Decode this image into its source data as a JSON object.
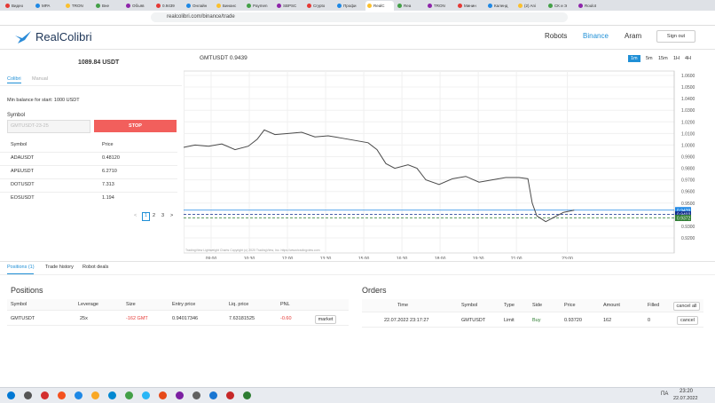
{
  "browser": {
    "tabs": [
      "Видео",
      "MPA",
      "TRON",
      "Вне",
      "Объяв",
      "0.9439",
      "Онлайн",
      "Бинанс",
      "Paymen",
      "SBPSC",
      "Crypto",
      "Профи",
      "RealC",
      "Rea",
      "TRON",
      "Минин",
      "Календ",
      "(2) Ani",
      "СК и Э",
      "Roulot"
    ],
    "url": "realcolibri.com/binance/trade"
  },
  "header": {
    "logo": "RealColibri",
    "nav": [
      "Robots",
      "Binance",
      "Aram"
    ],
    "signout": "Sign out"
  },
  "left": {
    "balance": "1089.84 USDT",
    "tabs": [
      "Colibri",
      "Manual"
    ],
    "min_balance": "Min balance for start: 1000 USDT",
    "symbol_label": "Symbol",
    "symbol_select": "GMTUSDT-23-25",
    "stop": "STOP",
    "headers": [
      "Symbol",
      "Price"
    ],
    "rows": [
      [
        "ADAUSDT",
        "0.48120"
      ],
      [
        "APEUSDT",
        "6.2710"
      ],
      [
        "DOTUSDT",
        "7.313"
      ],
      [
        "EOSUSDT",
        "1.194"
      ]
    ],
    "pages": [
      "1",
      "2",
      "3"
    ]
  },
  "chart": {
    "title": "GMTUSDT 0.9439",
    "intervals": [
      "1m",
      "5m",
      "15m",
      "1H",
      "4H"
    ],
    "attribution": "TradingView Lightweight Charts Copyright (c) 2020 TradingView, Inc. https://www.tradingview.com",
    "xlim": [
      7.92,
      27.2
    ],
    "ylim": [
      0.907,
      1.0638
    ],
    "xticks": [
      {
        "value": 9,
        "label": "09:00"
      },
      {
        "value": 10.5,
        "label": "10:30"
      },
      {
        "value": 12,
        "label": "12:00"
      },
      {
        "value": 13.5,
        "label": "13:30"
      },
      {
        "value": 15,
        "label": "15:00"
      },
      {
        "value": 16.5,
        "label": "16:30"
      },
      {
        "value": 18,
        "label": "18:00"
      },
      {
        "value": 19.5,
        "label": "19:30"
      },
      {
        "value": 21,
        "label": "21:00"
      },
      {
        "value": 23,
        "label": "23:00"
      }
    ],
    "yticks": [
      {
        "value": 1.06,
        "label": "1.0600"
      },
      {
        "value": 1.05,
        "label": "1.0500"
      },
      {
        "value": 1.04,
        "label": "1.0400"
      },
      {
        "value": 1.03,
        "label": "1.0300"
      },
      {
        "value": 1.02,
        "label": "1.0200"
      },
      {
        "value": 1.01,
        "label": "1.0100"
      },
      {
        "value": 1.0,
        "label": "1.0000"
      },
      {
        "value": 0.99,
        "label": "0.9900"
      },
      {
        "value": 0.98,
        "label": "0.9800"
      },
      {
        "value": 0.97,
        "label": "0.9700"
      },
      {
        "value": 0.96,
        "label": "0.9600"
      },
      {
        "value": 0.95,
        "label": "0.9500"
      },
      {
        "value": 0.93,
        "label": "0.9300"
      },
      {
        "value": 0.92,
        "label": "0.9200"
      }
    ],
    "x": [
      7.92,
      8.37,
      8.9,
      9.42,
      9.94,
      10.46,
      10.81,
      11.09,
      11.51,
      12.03,
      12.56,
      13.08,
      13.6,
      14.13,
      14.65,
      15.17,
      15.52,
      15.87,
      16.22,
      16.74,
      17.09,
      17.44,
      17.96,
      18.49,
      19.01,
      19.53,
      20.05,
      20.58,
      21.1,
      21.45,
      21.62,
      21.8,
      22.15,
      22.5,
      22.85,
      23.27
    ],
    "prices": [
      0.998,
      1.0,
      0.999,
      1.001,
      0.996,
      0.999,
      1.005,
      1.013,
      1.009,
      1.01,
      1.011,
      1.007,
      1.008,
      1.006,
      1.004,
      1.002,
      0.996,
      0.984,
      0.98,
      0.983,
      0.98,
      0.97,
      0.966,
      0.971,
      0.973,
      0.968,
      0.97,
      0.972,
      0.972,
      0.971,
      0.95,
      0.939,
      0.934,
      0.938,
      0.942,
      0.9439
    ],
    "line_color": "#4a4a4a",
    "price_labels": [
      {
        "value": 0.9439,
        "color": "#1e88e5"
      },
      {
        "value": 0.9402,
        "color": "#0d2a8a"
      },
      {
        "value": 0.9372,
        "color": "#2e7d32"
      }
    ]
  },
  "bottom": {
    "tabs": [
      "Positions (1)",
      "Trade history",
      "Robot deals"
    ]
  },
  "positions": {
    "title": "Positions",
    "headers": [
      "Symbol",
      "Leverage",
      "Size",
      "Entry price",
      "Liq. price",
      "PNL"
    ],
    "row": [
      "GMTUSDT",
      "25x",
      "-162 GMT",
      "0.94017346",
      "7.63181525",
      "-0.60"
    ],
    "button": "market"
  },
  "orders": {
    "title": "Orders",
    "headers": [
      "Time",
      "Symbol",
      "Type",
      "Side",
      "Price",
      "Amount",
      "Filled"
    ],
    "cancel_all": "cancel all",
    "row": [
      "22.07.2022 23:17:27",
      "GMTUSDT",
      "Limit",
      "Buy",
      "0.93720",
      "162",
      "0"
    ],
    "cancel": "cancel"
  },
  "taskbar": {
    "lang": "ПА",
    "time": "23:20",
    "date": "22.07.2022"
  }
}
